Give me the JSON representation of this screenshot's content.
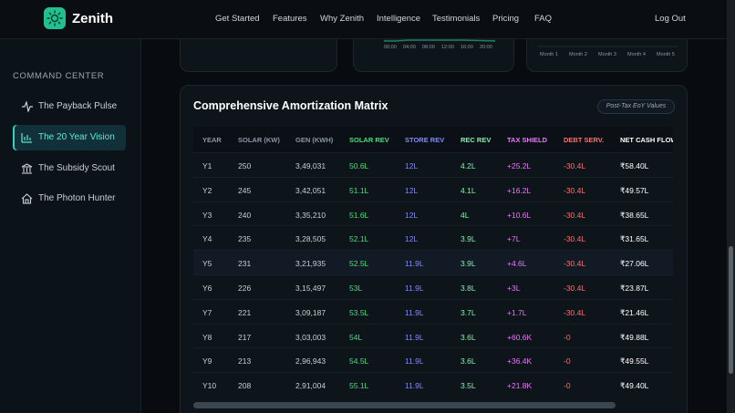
{
  "nav": {
    "brand": "Zenith",
    "links": [
      "Get Started",
      "Features",
      "Why Zenith",
      "Intelligence",
      "Testimonials",
      "Pricing",
      "FAQ"
    ],
    "logout": "Log Out"
  },
  "sidebar": {
    "heading": "COMMAND CENTER",
    "items": [
      {
        "label": "The Payback Pulse",
        "active": false
      },
      {
        "label": "The 20 Year Vision",
        "active": true
      },
      {
        "label": "The Subsidy Scout",
        "active": false
      },
      {
        "label": "The Photon Hunter",
        "active": false
      }
    ]
  },
  "top_cards": {
    "time_axis": [
      "00:00",
      "04:00",
      "08:00",
      "12:00",
      "16:00",
      "20:00"
    ],
    "month_axis": [
      "Month 1",
      "Month 2",
      "Month 3",
      "Month 4",
      "Month 5"
    ]
  },
  "table": {
    "title": "Comprehensive Amortization Matrix",
    "badge": "Post-Tax EoY Values",
    "columns": [
      "YEAR",
      "SOLAR (KW)",
      "GEN (KWH)",
      "SOLAR REV",
      "STORE REV",
      "REC REV",
      "TAX SHIELD",
      "DEBT SERV.",
      "NET CASH FLOW"
    ],
    "rows": [
      [
        "Y1",
        "250",
        "3,49,031",
        "50.6L",
        "12L",
        "4.2L",
        "+25.2L",
        "-30.4L",
        "₹58.40L"
      ],
      [
        "Y2",
        "245",
        "3,42,051",
        "51.1L",
        "12L",
        "4.1L",
        "+16.2L",
        "-30.4L",
        "₹49.57L"
      ],
      [
        "Y3",
        "240",
        "3,35,210",
        "51.6L",
        "12L",
        "4L",
        "+10.6L",
        "-30.4L",
        "₹38.65L"
      ],
      [
        "Y4",
        "235",
        "3,28,505",
        "52.1L",
        "12L",
        "3.9L",
        "+7L",
        "-30.4L",
        "₹31.65L"
      ],
      [
        "Y5",
        "231",
        "3,21,935",
        "52.5L",
        "11.9L",
        "3.9L",
        "+4.6L",
        "-30.4L",
        "₹27.06L"
      ],
      [
        "Y6",
        "226",
        "3,15,497",
        "53L",
        "11.9L",
        "3.8L",
        "+3L",
        "-30.4L",
        "₹23.87L"
      ],
      [
        "Y7",
        "221",
        "3,09,187",
        "53.5L",
        "11.9L",
        "3.7L",
        "+1.7L",
        "-30.4L",
        "₹21.46L"
      ],
      [
        "Y8",
        "217",
        "3,03,003",
        "54L",
        "11.9L",
        "3.6L",
        "+60.6K",
        "-0",
        "₹49.88L"
      ],
      [
        "Y9",
        "213",
        "2,96,943",
        "54.5L",
        "11.9L",
        "3.6L",
        "+36.4K",
        "-0",
        "₹49.55L"
      ],
      [
        "Y10",
        "208",
        "2,91,004",
        "55.1L",
        "11.9L",
        "3.5L",
        "+21.8K",
        "-0",
        "₹49.40L"
      ]
    ],
    "highlighted_row": 4
  }
}
